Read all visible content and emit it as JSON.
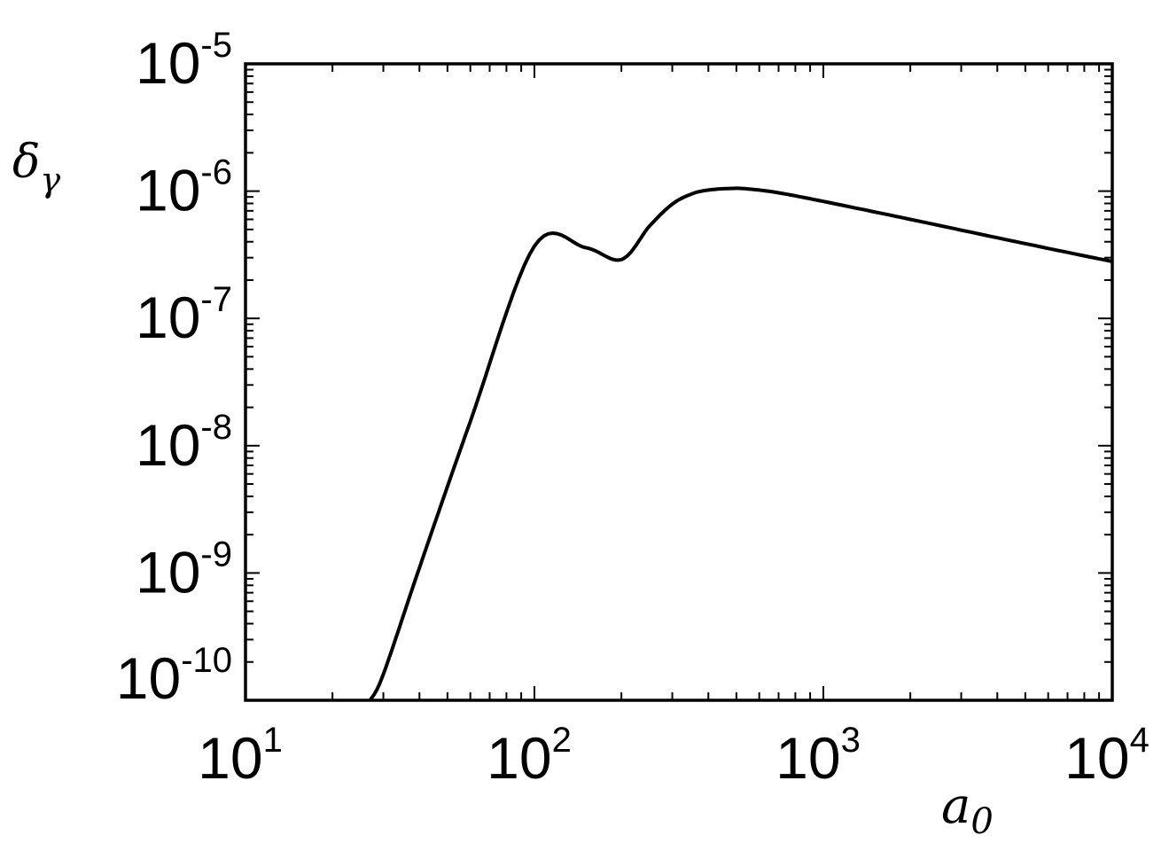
{
  "chart_data": {
    "type": "line",
    "title": "",
    "xlabel": {
      "base": "a",
      "sub": "0"
    },
    "ylabel": {
      "base": "δ",
      "sub": "γ"
    },
    "xscale": "log",
    "yscale": "log",
    "xlim": [
      10,
      10000
    ],
    "ylim": [
      1e-10,
      1e-05
    ],
    "grid": false,
    "legend": "none",
    "line_color": "#000000",
    "x_ticks": [
      {
        "value": 10,
        "base": "10",
        "exp": "1"
      },
      {
        "value": 100,
        "base": "10",
        "exp": "2"
      },
      {
        "value": 1000,
        "base": "10",
        "exp": "3"
      },
      {
        "value": 10000,
        "base": "10",
        "exp": "4"
      }
    ],
    "y_ticks": [
      {
        "value": 1e-05,
        "base": "10",
        "exp": "-5"
      },
      {
        "value": 1e-06,
        "base": "10",
        "exp": "-6"
      },
      {
        "value": 1e-07,
        "base": "10",
        "exp": "-7"
      },
      {
        "value": 1e-08,
        "base": "10",
        "exp": "-8"
      },
      {
        "value": 1e-09,
        "base": "10",
        "exp": "-9"
      },
      {
        "value": 1e-10,
        "base": "10",
        "exp": "-10"
      }
    ],
    "series": [
      {
        "x": [
          27,
          30,
          40,
          60,
          100,
          150,
          200,
          250,
          300,
          350,
          400,
          480,
          550,
          700,
          1000,
          2000,
          4000,
          7000,
          10000
        ],
        "y": [
          1e-10,
          1.6e-10,
          1.1e-09,
          1.55e-08,
          3.7e-07,
          3.6e-07,
          2.9e-07,
          5.3e-07,
          7.9e-07,
          9.5e-07,
          1.02e-06,
          1.05e-06,
          1.04e-06,
          9.7e-07,
          8.3e-07,
          6e-07,
          4.3e-07,
          3.3e-07,
          2.8e-07
        ]
      }
    ]
  }
}
